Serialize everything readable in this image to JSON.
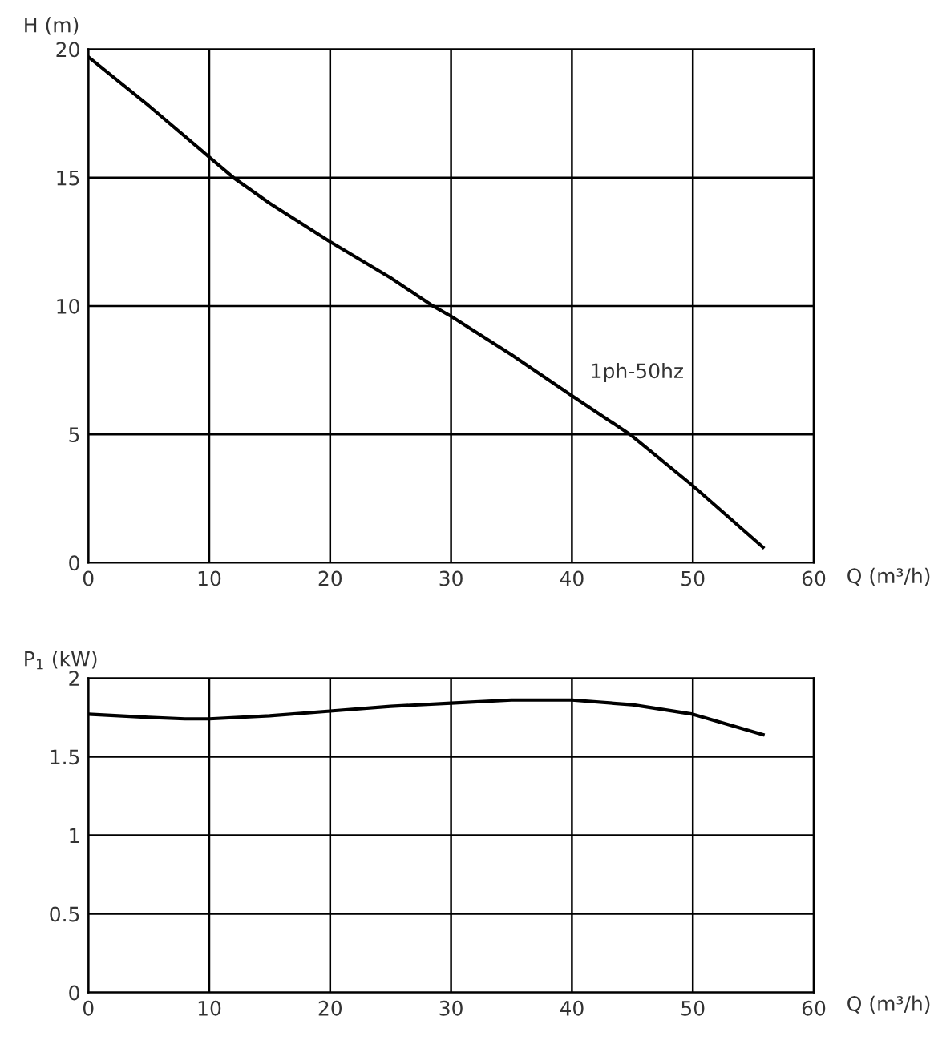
{
  "chart_data": [
    {
      "type": "line",
      "ylabel": "H (m)",
      "xlabel": "Q (m³/h)",
      "xlim": [
        0,
        60
      ],
      "xticks": [
        0,
        10,
        20,
        30,
        40,
        50,
        60
      ],
      "ylim": [
        0,
        20
      ],
      "yticks": [
        0,
        5,
        10,
        15,
        20
      ],
      "grid": true,
      "marker": "none",
      "line_style": "solid",
      "series": [
        {
          "name": "1ph-50hz",
          "color": "#000000",
          "x": [
            0,
            5,
            10,
            12,
            15,
            20,
            25,
            28.5,
            30,
            35,
            40,
            44.8,
            50,
            55.8
          ],
          "values": [
            19.7,
            17.8,
            15.8,
            15,
            14,
            12.5,
            11.1,
            10,
            9.6,
            8.1,
            6.5,
            5,
            3,
            0.6
          ]
        }
      ]
    },
    {
      "type": "line",
      "ylabel": "P$_{1}$ (kW)",
      "xlabel": "Q (m³/h)",
      "xlim": [
        0,
        60
      ],
      "xticks": [
        0,
        10,
        20,
        30,
        40,
        50,
        60
      ],
      "ylim": [
        0,
        2
      ],
      "yticks": [
        0,
        {
          "value": 0.5,
          "label": "0.5"
        },
        1,
        {
          "value": 1.5,
          "label": "1.5"
        },
        2
      ],
      "grid": true,
      "marker": "none",
      "line_style": "solid",
      "series": [
        {
          "color": "#000000",
          "x": [
            0,
            5,
            8,
            10,
            15,
            20,
            25,
            30,
            35,
            37,
            40,
            45,
            50,
            55.8
          ],
          "values": [
            1.77,
            1.75,
            1.74,
            1.74,
            1.76,
            1.79,
            1.82,
            1.84,
            1.86,
            1.86,
            1.86,
            1.83,
            1.77,
            1.64
          ]
        }
      ]
    }
  ]
}
